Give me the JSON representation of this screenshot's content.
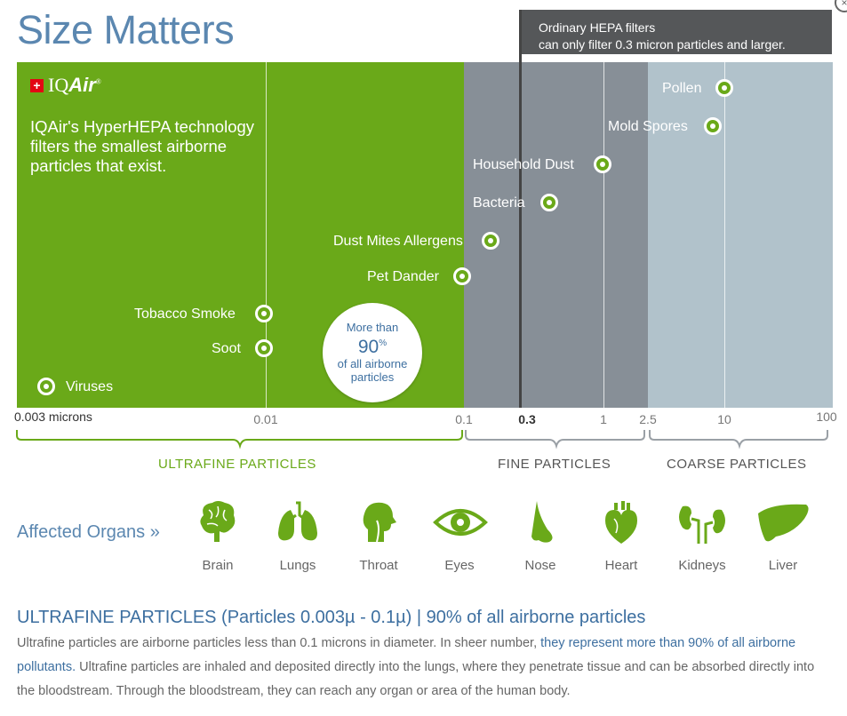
{
  "title": "Size Matters",
  "hepa_note": {
    "line1": "Ordinary HEPA filters",
    "line2": "can only filter 0.3 micron particles and larger."
  },
  "logo": {
    "symbol": "+",
    "text_a": "IQ",
    "text_b": "Air",
    "mark": "®"
  },
  "intro": "IQAir's HyperHEPA technology filters the smallest airborne particles that exist.",
  "bubble": {
    "line1": "More than",
    "value": "90",
    "unit": "%",
    "line2": "of all airborne",
    "line3": "particles"
  },
  "chart_data": {
    "type": "scatter",
    "x_scale": "log",
    "xlim": [
      0.003,
      100
    ],
    "x_unit": "microns",
    "x_ticks": [
      "0.003 microns",
      "0.01",
      "0.1",
      "0.3",
      "1",
      "2.5",
      "10",
      "100"
    ],
    "points": [
      {
        "label": "Pollen",
        "x": 10
      },
      {
        "label": "Mold Spores",
        "x": 8.5
      },
      {
        "label": "Household Dust",
        "x": 1
      },
      {
        "label": "Bacteria",
        "x": 0.5
      },
      {
        "label": "Dust Mites Allergens",
        "x": 0.18
      },
      {
        "label": "Pet Dander",
        "x": 0.1
      },
      {
        "label": "Tobacco Smoke",
        "x": 0.01
      },
      {
        "label": "Soot",
        "x": 0.01
      },
      {
        "label": "Viruses",
        "x": 0.003
      }
    ],
    "ranges": [
      {
        "label": "ULTRAFINE PARTICLES",
        "from": 0.003,
        "to": 0.1,
        "color": "#6aa919"
      },
      {
        "label": "FINE PARTICLES",
        "from": 0.1,
        "to": 2.5,
        "color": "#878f97"
      },
      {
        "label": "COARSE PARTICLES",
        "from": 2.5,
        "to": 100,
        "color": "#b1c2cb"
      }
    ],
    "hepa_threshold": 0.3
  },
  "organs": {
    "title": "Affected Organs »",
    "items": [
      {
        "label": "Brain",
        "icon": "brain-icon"
      },
      {
        "label": "Lungs",
        "icon": "lungs-icon"
      },
      {
        "label": "Throat",
        "icon": "throat-icon"
      },
      {
        "label": "Eyes",
        "icon": "eye-icon"
      },
      {
        "label": "Nose",
        "icon": "nose-icon"
      },
      {
        "label": "Heart",
        "icon": "heart-icon"
      },
      {
        "label": "Kidneys",
        "icon": "kidneys-icon"
      },
      {
        "label": "Liver",
        "icon": "liver-icon"
      }
    ],
    "icon_color": "#6aa919"
  },
  "section": {
    "title": "ULTRAFINE PARTICLES (Particles 0.003µ - 0.1µ) | 90% of all airborne particles",
    "text_a": "Ultrafine particles are airborne particles less than 0.1 microns in diameter. In sheer number, ",
    "text_hl": "they represent more than 90% of all airborne pollutants.",
    "text_b": " Ultrafine particles are inhaled and deposited directly into the lungs, where they penetrate tissue and can be absorbed directly into the bloodstream. Through the bloodstream, they can reach any organ or area of the human body."
  }
}
